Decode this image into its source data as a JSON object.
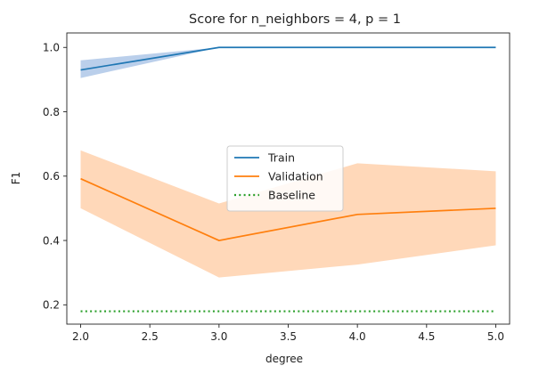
{
  "chart_data": {
    "type": "line",
    "title": "Score for n_neighbors = 4, p = 1",
    "xlabel": "degree",
    "ylabel": "F1",
    "xlim": [
      1.9,
      5.1
    ],
    "ylim": [
      0.14,
      1.045
    ],
    "xticks": [
      "2.0",
      "2.5",
      "3.0",
      "3.5",
      "4.0",
      "4.5",
      "5.0"
    ],
    "yticks": [
      "0.2",
      "0.4",
      "0.6",
      "0.8",
      "1.0"
    ],
    "x": [
      2,
      3,
      4,
      5
    ],
    "grid": false,
    "legend": {
      "placement": "center"
    },
    "series": [
      {
        "name": "Train",
        "color": "#1f77b4",
        "band_color": "#aec7e8",
        "style": "solid",
        "values": [
          0.93,
          1.0,
          1.0,
          1.0
        ],
        "band_lower": [
          0.905,
          1.0,
          1.0,
          1.0
        ],
        "band_upper": [
          0.96,
          1.0,
          1.0,
          1.0
        ]
      },
      {
        "name": "Validation",
        "color": "#ff7f0e",
        "band_color": "#ffd1ad",
        "style": "solid",
        "values": [
          0.592,
          0.4,
          0.481,
          0.5
        ],
        "band_lower": [
          0.5,
          0.285,
          0.325,
          0.385
        ],
        "band_upper": [
          0.68,
          0.515,
          0.64,
          0.615
        ]
      },
      {
        "name": "Baseline",
        "color": "#2ca02c",
        "style": "dotted",
        "values": [
          0.18,
          0.18,
          0.18,
          0.18
        ]
      }
    ]
  }
}
